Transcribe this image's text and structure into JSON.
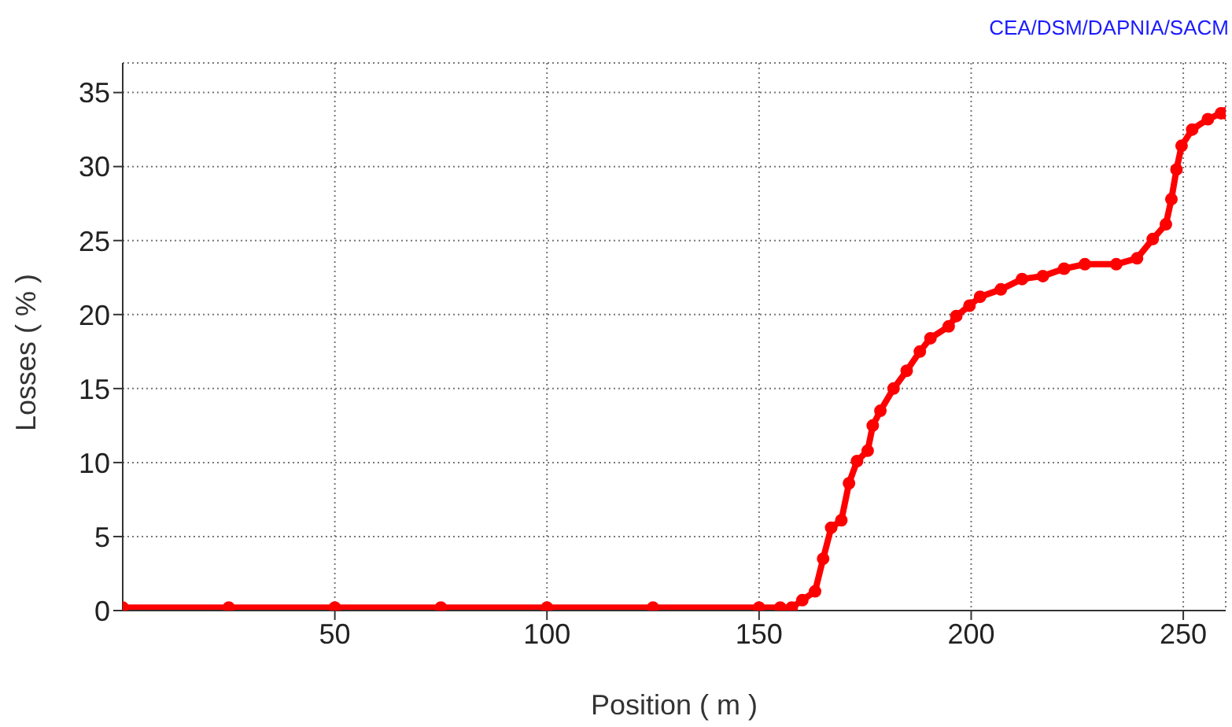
{
  "chart_data": {
    "type": "line",
    "xlabel": "Position ( m )",
    "ylabel": "Losses ( % )",
    "annotations": [
      "CEA/DSM/DAPNIA/SACM"
    ],
    "x": [
      0,
      25,
      50,
      75,
      100,
      125,
      150,
      155,
      157.7,
      160.2,
      163.2,
      165.1,
      167,
      169.4,
      171.2,
      173.1,
      175.6,
      176.8,
      178.6,
      181.7,
      184.8,
      187.9,
      190.4,
      194.7,
      196.5,
      199.6,
      202.1,
      207,
      212,
      216.9,
      221.9,
      226.8,
      234.2,
      239.1,
      242.8,
      245.9,
      247.2,
      248.4,
      249.6,
      252.1,
      255.8,
      258.9,
      260
    ],
    "series": [
      {
        "color": "#ff0000",
        "values": [
          0.2,
          0.2,
          0.2,
          0.2,
          0.2,
          0.2,
          0.2,
          0.2,
          0.2,
          0.7,
          1.3,
          3.5,
          5.6,
          6.1,
          8.6,
          10.1,
          10.8,
          12.5,
          13.5,
          15.0,
          16.2,
          17.5,
          18.4,
          19.2,
          19.9,
          20.6,
          21.2,
          21.7,
          22.4,
          22.6,
          23.1,
          23.4,
          23.4,
          23.8,
          25.1,
          26.1,
          27.8,
          29.8,
          31.4,
          32.5,
          33.2,
          33.6,
          33.6
        ]
      }
    ],
    "xlim": [
      0,
      260
    ],
    "xticks": [
      50,
      100,
      150,
      200,
      250
    ],
    "ylim": [
      0,
      37
    ],
    "yticks": [
      0,
      5,
      10,
      15,
      20,
      25,
      30,
      35
    ],
    "grid": true,
    "marker": "circle",
    "line_style": "solid"
  }
}
